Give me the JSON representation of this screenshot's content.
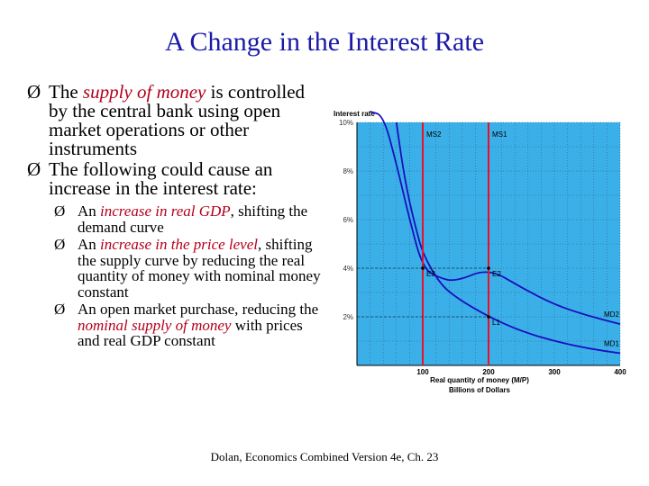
{
  "slide": {
    "title": "A Change in the Interest Rate",
    "bullet1_pre": "The ",
    "bullet1_emph": "supply of money",
    "bullet1_post": " is controlled by the central bank using open market operations or other instruments",
    "bullet2": "The following could cause an increase in the interest rate:",
    "sub1_pre": "An ",
    "sub1_emph": "increase in real GDP",
    "sub1_post": ", shifting the demand curve",
    "sub2_pre": "An ",
    "sub2_emph": "increase in the price level",
    "sub2_post": ", shifting the supply curve by reducing the real quantity of money with nominal money constant",
    "sub3_pre": "An open market purchase, reducing the ",
    "sub3_emph": "nominal supply of money",
    "sub3_post": " with prices and real GDP constant",
    "footer": "Dolan, Economics Combined Version 4e, Ch. 23",
    "arrow_glyph": "Ø"
  },
  "colors": {
    "title": "#1a1aa8",
    "emphasis": "#b3001b",
    "plot_bg": "#3bb0e8",
    "grid": "#2a5a8a",
    "ms_line": "#e8102a",
    "md_curve": "#1a0fbf"
  },
  "chart_data": {
    "type": "line",
    "ylabel": "Interest rate",
    "xlabel": "Real quantity of money (M/P)",
    "xlabel2": "Billions of Dollars",
    "xlim": [
      0,
      400
    ],
    "ylim": [
      0,
      10
    ],
    "x_ticks": [
      100,
      200,
      300,
      400
    ],
    "x_tick_labels": [
      "100",
      "200",
      "300",
      "400"
    ],
    "y_ticks": [
      2,
      4,
      6,
      8,
      10
    ],
    "y_tick_labels": [
      "2%",
      "4%",
      "6%",
      "8%",
      "10%"
    ],
    "grid": true,
    "vertical_lines": [
      {
        "name": "MS2",
        "x": 100
      },
      {
        "name": "MS1",
        "x": 200
      }
    ],
    "series": [
      {
        "name": "MD2",
        "x": [
          20,
          40,
          60,
          80,
          100,
          125,
          150,
          200,
          250,
          300,
          350,
          400
        ],
        "y": [
          10.8,
          10.3,
          8.3,
          6.0,
          4.0,
          3.6,
          3.45,
          4.0,
          3.2,
          2.5,
          2.05,
          1.7
        ]
      },
      {
        "name": "MD1",
        "x": [
          60,
          70,
          80,
          90,
          100,
          125,
          150,
          200,
          250,
          300,
          350,
          400
        ],
        "y": [
          10.0,
          8.1,
          6.7,
          5.6,
          4.6,
          3.4,
          2.8,
          2.0,
          1.4,
          1.0,
          0.7,
          0.5
        ]
      }
    ],
    "points": [
      {
        "label": "E3",
        "x": 100,
        "y": 4
      },
      {
        "label": "E2",
        "x": 200,
        "y": 4
      },
      {
        "label": "L1",
        "x": 200,
        "y": 2
      }
    ],
    "labels": {
      "ms2": "MS2",
      "ms1": "MS1",
      "md2": "MD2",
      "md1": "MD1"
    }
  }
}
